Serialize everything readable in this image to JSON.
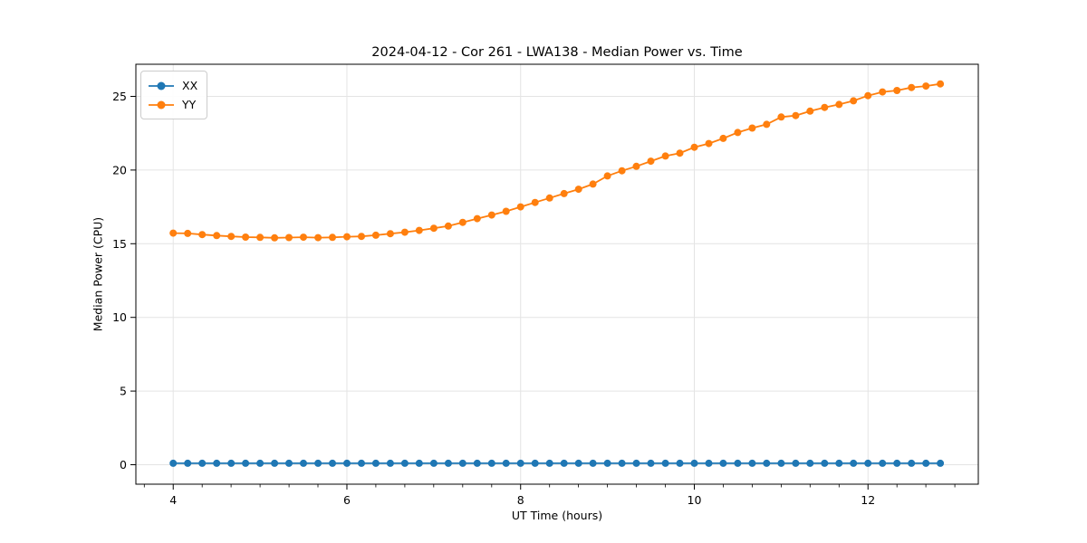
{
  "chart_data": {
    "type": "line",
    "title": "2024-04-12 - Cor 261 - LWA138 - Median Power vs. Time",
    "xlabel": "UT Time (hours)",
    "ylabel": "Median Power (CPU)",
    "xlim": [
      3.57,
      13.27
    ],
    "ylim": [
      -1.32,
      27.18
    ],
    "xticks": [
      4,
      6,
      8,
      10,
      12
    ],
    "yticks": [
      0,
      5,
      10,
      15,
      20,
      25
    ],
    "x_minor_step": 0.33333,
    "grid": true,
    "legend_position": "upper-left",
    "x": [
      4.0,
      4.167,
      4.333,
      4.5,
      4.667,
      4.833,
      5.0,
      5.167,
      5.333,
      5.5,
      5.667,
      5.833,
      6.0,
      6.167,
      6.333,
      6.5,
      6.667,
      6.833,
      7.0,
      7.167,
      7.333,
      7.5,
      7.667,
      7.833,
      8.0,
      8.167,
      8.333,
      8.5,
      8.667,
      8.833,
      9.0,
      9.167,
      9.333,
      9.5,
      9.667,
      9.833,
      10.0,
      10.167,
      10.333,
      10.5,
      10.667,
      10.833,
      11.0,
      11.167,
      11.333,
      11.5,
      11.667,
      11.833,
      12.0,
      12.167,
      12.333,
      12.5,
      12.667,
      12.833
    ],
    "series": [
      {
        "name": "XX",
        "color": "#1f77b4",
        "values": [
          0.1,
          0.1,
          0.1,
          0.1,
          0.1,
          0.1,
          0.1,
          0.1,
          0.1,
          0.1,
          0.1,
          0.1,
          0.1,
          0.1,
          0.1,
          0.1,
          0.1,
          0.1,
          0.1,
          0.1,
          0.1,
          0.1,
          0.1,
          0.1,
          0.1,
          0.1,
          0.1,
          0.1,
          0.1,
          0.1,
          0.1,
          0.1,
          0.1,
          0.1,
          0.1,
          0.1,
          0.1,
          0.1,
          0.1,
          0.1,
          0.1,
          0.1,
          0.1,
          0.1,
          0.1,
          0.1,
          0.1,
          0.1,
          0.1,
          0.1,
          0.1,
          0.1,
          0.1,
          0.1
        ]
      },
      {
        "name": "YY",
        "color": "#ff7f0e",
        "values": [
          15.72,
          15.7,
          15.62,
          15.55,
          15.5,
          15.45,
          15.43,
          15.4,
          15.42,
          15.44,
          15.41,
          15.43,
          15.47,
          15.5,
          15.58,
          15.68,
          15.78,
          15.9,
          16.05,
          16.2,
          16.45,
          16.7,
          16.95,
          17.2,
          17.5,
          17.8,
          18.1,
          18.4,
          18.7,
          19.05,
          19.6,
          19.95,
          20.25,
          20.6,
          20.95,
          21.15,
          21.55,
          21.8,
          22.15,
          22.55,
          22.85,
          23.1,
          23.6,
          23.7,
          24.0,
          24.25,
          24.45,
          24.7,
          25.05,
          25.3,
          25.4,
          25.6,
          25.7,
          25.85
        ]
      }
    ]
  }
}
